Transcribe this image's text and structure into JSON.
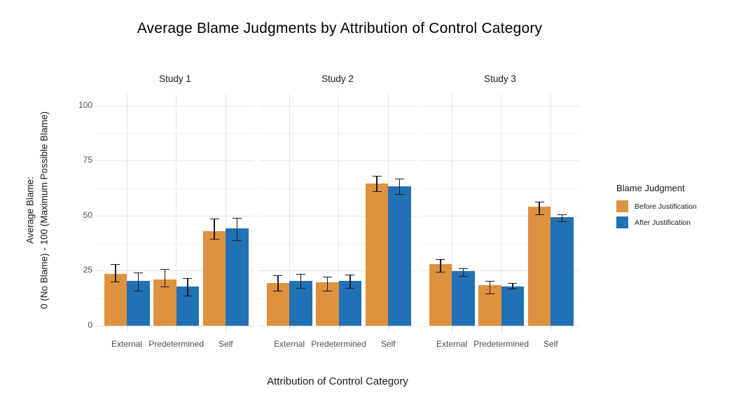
{
  "title": "Average Blame Judgments by Attribution of Control Category",
  "axes": {
    "x_title": "Attribution of Control Category",
    "y_title_line1": "Average Blame:",
    "y_title_line2": "0 (No Blame) - 100 (Maximum Possible Blame)"
  },
  "legend": {
    "title": "Blame Judgment",
    "items": [
      {
        "label": "Before Justification",
        "color": "#DE913E"
      },
      {
        "label": "After Justification",
        "color": "#2171B5"
      }
    ]
  },
  "colors": {
    "before_justification": "#DE913E",
    "after_justification": "#2171B5",
    "grid_major": "#e4e4e4",
    "grid_minor": "#f1f1f1",
    "tick_text": "#4d4d4d",
    "error_bar": "#1a1a1a",
    "background": "#ffffff"
  },
  "chart_data": {
    "type": "bar",
    "subtype": "grouped-bars-with-error-bars-faceted",
    "title": "Average Blame Judgments by Attribution of Control Category",
    "xlabel": "Attribution of Control Category",
    "ylabel": "Average Blame: 0 (No Blame) - 100 (Maximum Possible Blame)",
    "ylim": [
      0,
      105
    ],
    "yticks": [
      0,
      25,
      50,
      75,
      100
    ],
    "yticks_minor": [
      12.5,
      37.5,
      62.5,
      87.5
    ],
    "grid": true,
    "legend_position": "right",
    "legend_title": "Blame Judgment",
    "categories": [
      "External",
      "Predetermined",
      "Self"
    ],
    "facets": [
      {
        "label": "Study 1",
        "series": [
          {
            "name": "Before Justification",
            "color": "#DE913E",
            "values": [
              23.4,
              20.9,
              43.0
            ],
            "err_low": [
              19.7,
              17.4,
              39.0
            ],
            "err_high": [
              27.9,
              25.8,
              48.6
            ]
          },
          {
            "name": "After Justification",
            "color": "#2171B5",
            "values": [
              20.3,
              17.7,
              44.1
            ],
            "err_low": [
              15.7,
              13.2,
              38.6
            ],
            "err_high": [
              24.2,
              21.6,
              49.0
            ]
          }
        ]
      },
      {
        "label": "Study 2",
        "series": [
          {
            "name": "Before Justification",
            "color": "#DE913E",
            "values": [
              19.4,
              19.7,
              64.5
            ],
            "err_low": [
              15.7,
              15.7,
              60.6
            ],
            "err_high": [
              22.9,
              22.4,
              68.2
            ]
          },
          {
            "name": "After Justification",
            "color": "#2171B5",
            "values": [
              20.4,
              20.4,
              63.3
            ],
            "err_low": [
              16.9,
              16.9,
              59.4
            ],
            "err_high": [
              23.6,
              23.1,
              66.9
            ]
          }
        ]
      },
      {
        "label": "Study 3",
        "series": [
          {
            "name": "Before Justification",
            "color": "#DE913E",
            "values": [
              28.1,
              18.4,
              54.1
            ],
            "err_low": [
              24.3,
              14.2,
              50.4
            ],
            "err_high": [
              30.1,
              20.3,
              56.3
            ]
          },
          {
            "name": "After Justification",
            "color": "#2171B5",
            "values": [
              24.7,
              17.9,
              49.2
            ],
            "err_low": [
              22.4,
              16.4,
              47.1
            ],
            "err_high": [
              26.2,
              19.4,
              50.6
            ]
          }
        ]
      }
    ]
  }
}
